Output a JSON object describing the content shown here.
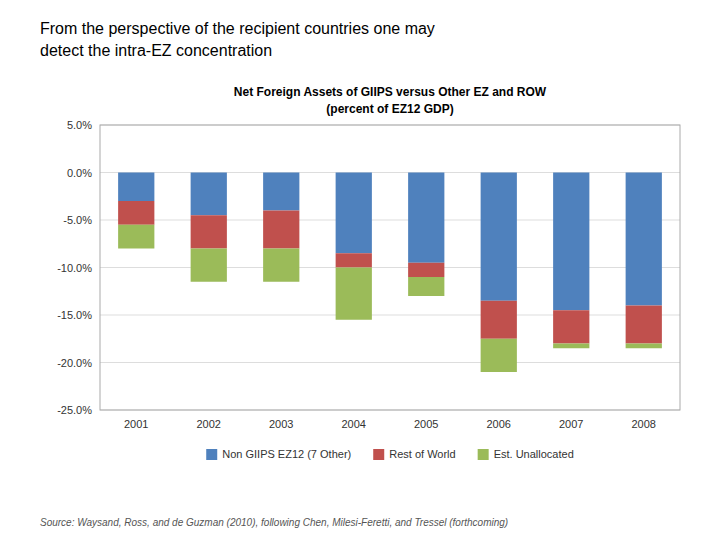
{
  "chart_data": {
    "type": "bar",
    "title": "Net Foreign Assets of GIIPS versus Other EZ and ROW",
    "subtitle": "(percent of EZ12 GDP)",
    "annotations": [
      "From the perspective of the recipient countries one may",
      "detect the intra-EZ concentration",
      "Source: Waysand, Ross, and de Guzman (2010), following Chen, Milesi-Feretti, and Tressel (forthcoming)"
    ],
    "categories": [
      "2001",
      "2002",
      "2003",
      "2004",
      "2005",
      "2006",
      "2007",
      "2008"
    ],
    "series": [
      {
        "name": "Non GIIPS EZ12 (7 Other)",
        "color": "#4F81BD",
        "values": [
          -3.0,
          -4.5,
          -4.0,
          -8.5,
          -9.5,
          -13.5,
          -14.5,
          -14.0
        ]
      },
      {
        "name": "Rest of World",
        "color": "#C0504D",
        "values": [
          -2.5,
          -3.5,
          -4.0,
          -1.5,
          -1.5,
          -4.0,
          -3.5,
          -4.0
        ]
      },
      {
        "name": "Est. Unallocated",
        "color": "#9BBB59",
        "values": [
          -2.5,
          -3.5,
          -3.5,
          -5.5,
          -2.0,
          -3.5,
          -0.5,
          -0.5
        ]
      }
    ],
    "ylim": [
      -25.0,
      5.0
    ],
    "yticks": [
      {
        "value": 5.0,
        "label": "5.0%"
      },
      {
        "value": 0.0,
        "label": "0.0%"
      },
      {
        "value": -5.0,
        "label": "-5.0%"
      },
      {
        "value": -10.0,
        "label": "-10.0%"
      },
      {
        "value": -15.0,
        "label": "-15.0%"
      },
      {
        "value": -20.0,
        "label": "-20.0%"
      },
      {
        "value": -25.0,
        "label": "-25.0%"
      }
    ],
    "stacked": true,
    "grid": true,
    "legend": "bottom"
  }
}
